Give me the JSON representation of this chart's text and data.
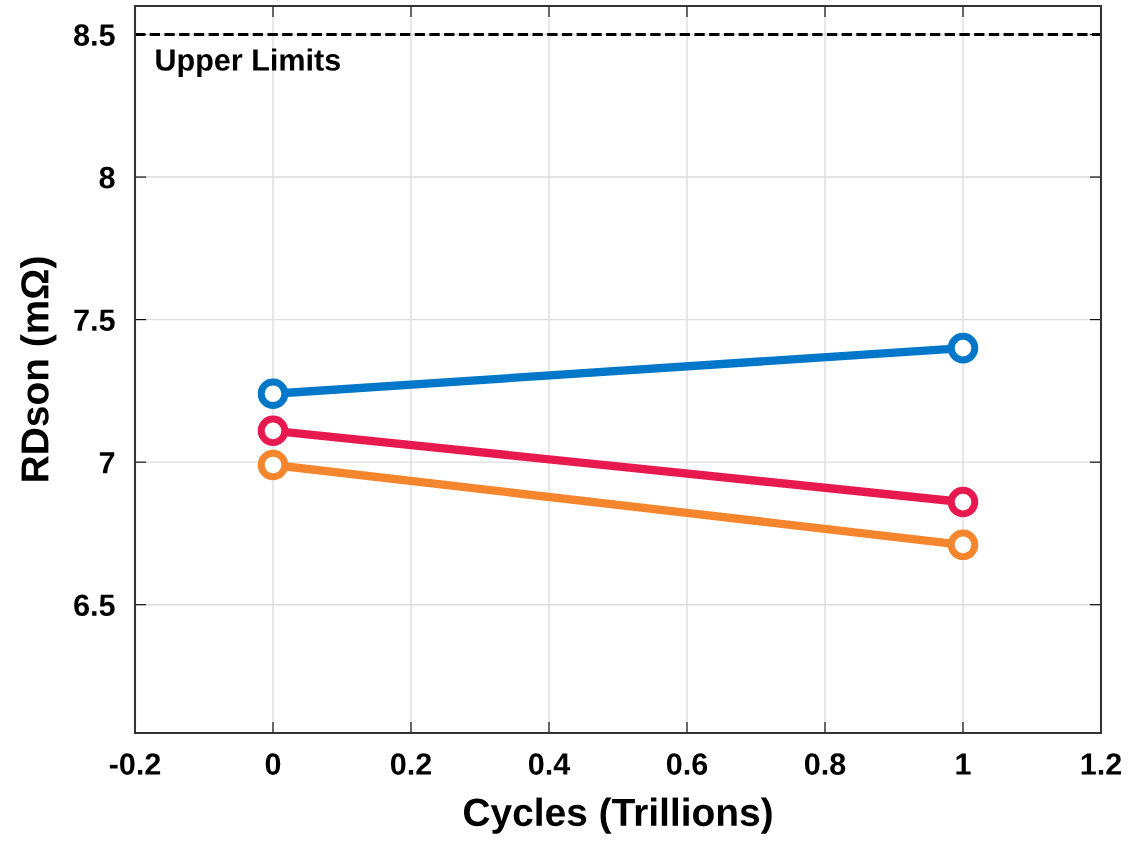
{
  "chart_data": {
    "type": "line",
    "xlabel": "Cycles (Trillions)",
    "ylabel": "RDson (mΩ)",
    "x": [
      0,
      1
    ],
    "series": [
      {
        "color": "#0077c8",
        "values": [
          7.24,
          7.4
        ]
      },
      {
        "color": "#e8194f",
        "values": [
          7.11,
          6.86
        ]
      },
      {
        "color": "#f5862e",
        "values": [
          6.99,
          6.71
        ]
      }
    ],
    "xlim": [
      -0.2,
      1.2
    ],
    "xticks": [
      -0.2,
      0,
      0.2,
      0.4,
      0.6,
      0.8,
      1,
      1.2
    ],
    "ylim": [
      6.05,
      8.6
    ],
    "yticks": [
      6.5,
      7,
      7.5,
      8,
      8.5
    ],
    "ref_lines": [
      {
        "axis": "y",
        "value": 8.5,
        "label": "Upper Limits",
        "color": "#000000",
        "line_style": "dashed"
      }
    ],
    "grid": true,
    "marker": "circle",
    "line_style": "solid"
  }
}
